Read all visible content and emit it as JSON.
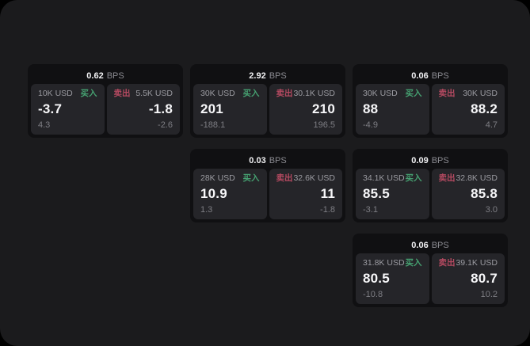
{
  "labels": {
    "buy": "买入",
    "sell": "卖出",
    "bps_unit": "BPS"
  },
  "colors": {
    "buy": "#46a171",
    "sell": "#b54a61",
    "surface": "#1b1b1d",
    "card": "#101012",
    "panel": "#252529"
  },
  "cards": [
    {
      "bps": "0.62",
      "buy": {
        "amount": "10K USD",
        "price": "-3.7",
        "delta": "4.3"
      },
      "sell": {
        "amount": "5.5K USD",
        "price": "-1.8",
        "delta": "-2.6"
      }
    },
    {
      "bps": "2.92",
      "buy": {
        "amount": "30K USD",
        "price": "201",
        "delta": "-188.1"
      },
      "sell": {
        "amount": "30.1K USD",
        "price": "210",
        "delta": "196.5"
      }
    },
    {
      "bps": "0.06",
      "buy": {
        "amount": "30K USD",
        "price": "88",
        "delta": "-4.9"
      },
      "sell": {
        "amount": "30K USD",
        "price": "88.2",
        "delta": "4.7"
      }
    },
    {
      "bps": "0.03",
      "buy": {
        "amount": "28K USD",
        "price": "10.9",
        "delta": "1.3"
      },
      "sell": {
        "amount": "32.6K USD",
        "price": "11",
        "delta": "-1.8"
      }
    },
    {
      "bps": "0.09",
      "buy": {
        "amount": "34.1K USD",
        "price": "85.5",
        "delta": "-3.1"
      },
      "sell": {
        "amount": "32.8K USD",
        "price": "85.8",
        "delta": "3.0"
      }
    },
    {
      "bps": "0.06",
      "buy": {
        "amount": "31.8K USD",
        "price": "80.5",
        "delta": "-10.8"
      },
      "sell": {
        "amount": "39.1K USD",
        "price": "80.7",
        "delta": "10.2"
      }
    }
  ]
}
